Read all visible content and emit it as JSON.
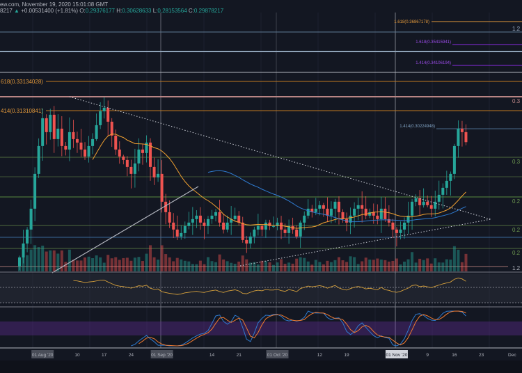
{
  "header": {
    "source": "ew.com, November 19, 2020 15:01:08 GMT",
    "symbol_tail": "8217",
    "change": "+0.00531400 (+1.81%)",
    "o_label": "O:",
    "o": "0.29376177",
    "h_label": "H:",
    "h": "0.30628633",
    "l_label": "L:",
    "l": "0.28153564",
    "c_label": "C:",
    "c": "0.29878217"
  },
  "fib_labels": {
    "f1": "1.618(0.36867178)",
    "f2": "1.618(0.35415941)",
    "f3": "1.414(0.34106194)",
    "f4": "618(0.33134028)",
    "f5": "414(0.31310841)",
    "f6": "1.414(0.30224948)"
  },
  "right_labels": [
    "1.2",
    "0.3",
    "0.3",
    "0.2",
    "0.2",
    "0.2",
    "1.2"
  ],
  "colors": {
    "up": "#26a69a",
    "down": "#ef5350",
    "ma_fast": "#f0a030",
    "ma_slow": "#2f7bd0",
    "bg": "#131722"
  },
  "chart_data": {
    "type": "candlestick",
    "start_date": "2020-07-26",
    "interval": "1D",
    "closes": [
      0.2723,
      0.2755,
      0.2787,
      0.2835,
      0.2915,
      0.2979,
      0.3043,
      0.3011,
      0.3051,
      0.2995,
      0.3019,
      0.2979,
      0.2971,
      0.3011,
      0.2995,
      0.2987,
      0.2971,
      0.2955,
      0.2979,
      0.2995,
      0.3027,
      0.3059,
      0.3067,
      0.3035,
      0.3003,
      0.2971,
      0.2955,
      0.2947,
      0.2931,
      0.2915,
      0.2939,
      0.2971,
      0.2963,
      0.2987,
      0.2931,
      0.2907,
      0.2915,
      0.2851,
      0.2827,
      0.2803,
      0.2787,
      0.2771,
      0.2779,
      0.2795,
      0.2803,
      0.2811,
      0.2819,
      0.2803,
      0.2795,
      0.2811,
      0.2819,
      0.2827,
      0.2803,
      0.2787,
      0.2803,
      0.2811,
      0.2819,
      0.2803,
      0.2763,
      0.2755,
      0.2771,
      0.2787,
      0.2795,
      0.2787,
      0.2803,
      0.2795,
      0.2795,
      0.2803,
      0.2787,
      0.2779,
      0.2795,
      0.2787,
      0.2771,
      0.2803,
      0.2819,
      0.2835,
      0.2827,
      0.2835,
      0.2843,
      0.2835,
      0.2819,
      0.2835,
      0.2851,
      0.2827,
      0.2811,
      0.2803,
      0.2819,
      0.2835,
      0.2843,
      0.2835,
      0.2819,
      0.2827,
      0.2819,
      0.2811,
      0.2835,
      0.2811,
      0.2803,
      0.2787,
      0.2779,
      0.2787,
      0.2803,
      0.2819,
      0.2851,
      0.2859,
      0.2843,
      0.2851,
      0.2843,
      0.2835,
      0.2851,
      0.2867,
      0.2883,
      0.2899,
      0.2915,
      0.2979,
      0.3019,
      0.3011,
      0.2988
    ],
    "x_ticks": [
      {
        "label": "01 Aug '20",
        "day": 6,
        "boxed": true
      },
      {
        "label": "10",
        "day": 15
      },
      {
        "label": "17",
        "day": 22
      },
      {
        "label": "24",
        "day": 29
      },
      {
        "label": "01 Sep '20",
        "day": 37,
        "boxed": true
      },
      {
        "label": "14",
        "day": 50
      },
      {
        "label": "21",
        "day": 57
      },
      {
        "label": "01 Oct '20",
        "day": 67,
        "boxed": true
      },
      {
        "label": "12",
        "day": 78
      },
      {
        "label": "19",
        "day": 85
      },
      {
        "label": "01 Nov '20",
        "day": 98,
        "boxed": true,
        "highlight": true
      },
      {
        "label": "9",
        "day": 106
      },
      {
        "label": "16",
        "day": 113
      },
      {
        "label": "23",
        "day": 120
      },
      {
        "label": "Dec",
        "day": 128
      }
    ],
    "indicators": [
      "Volume",
      "SMA 20",
      "SMA 50",
      "RSI 14",
      "Stoch RSI"
    ]
  }
}
